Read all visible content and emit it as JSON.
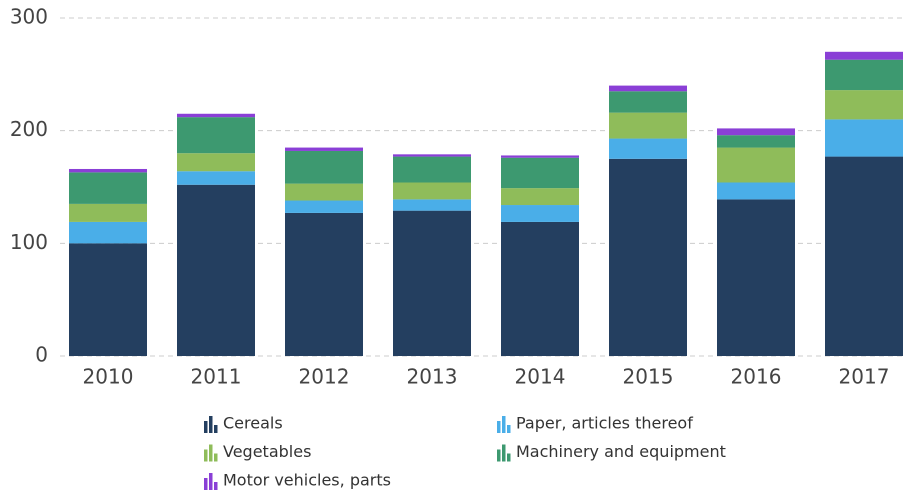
{
  "chart_data": {
    "type": "stacked_bar",
    "categories": [
      "2010",
      "2011",
      "2012",
      "2013",
      "2014",
      "2015",
      "2016",
      "2017"
    ],
    "series": [
      {
        "name": "Cereals",
        "color": "#243f60",
        "values": [
          100,
          152,
          127,
          129,
          119,
          175,
          139,
          177
        ]
      },
      {
        "name": "Paper, articles thereof",
        "color": "#4aaee8",
        "values": [
          19,
          12,
          11,
          10,
          15,
          18,
          15,
          33
        ]
      },
      {
        "name": "Vegetables",
        "color": "#8fbc5a",
        "values": [
          16,
          16,
          15,
          15,
          15,
          23,
          31,
          26
        ]
      },
      {
        "name": "Machinery and equipment",
        "color": "#3d9970",
        "values": [
          28,
          32,
          29,
          23,
          27,
          19,
          11,
          27
        ]
      },
      {
        "name": "Motor vehicles, parts",
        "color": "#8a3fd6",
        "values": [
          3,
          3,
          3,
          2,
          2,
          5,
          6,
          7
        ]
      }
    ],
    "ylim": [
      0,
      300
    ],
    "yticks": [
      0,
      100,
      200,
      300
    ],
    "grid": true
  }
}
